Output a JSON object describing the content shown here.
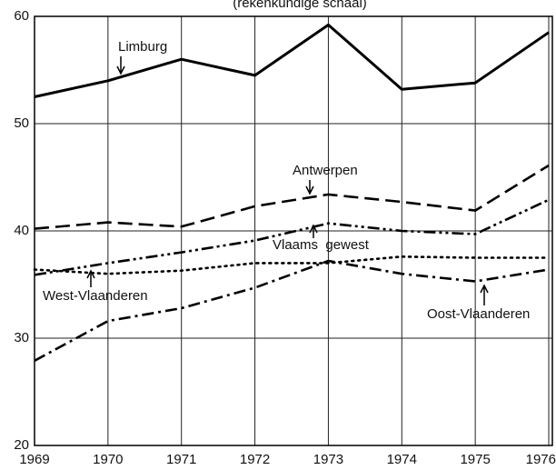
{
  "chart_data": {
    "type": "line",
    "subtitle": "(rekenkundige schaal)",
    "x": [
      1969,
      1970,
      1971,
      1972,
      1973,
      1974,
      1975,
      1976
    ],
    "xlim": [
      1969,
      1976
    ],
    "xticks": [
      1969,
      1970,
      1971,
      1972,
      1973,
      1974,
      1975,
      1976
    ],
    "ylim": [
      20,
      60
    ],
    "yticks": [
      20,
      30,
      40,
      50,
      60
    ],
    "grid": true,
    "series": [
      {
        "name": "Limburg",
        "color": "#000000",
        "dash": "solid",
        "values": [
          52.5,
          54,
          56,
          54.5,
          59.2,
          53.2,
          53.8,
          58.5
        ]
      },
      {
        "name": "Antwerpen",
        "color": "#000000",
        "dash": "dashed",
        "values": [
          40.2,
          40.8,
          40.4,
          42.3,
          43.4,
          42.7,
          41.9,
          46.1
        ]
      },
      {
        "name": "Vlaams  gewest",
        "color": "#000000",
        "dash": "dashdotdot",
        "values": [
          35.9,
          37,
          38,
          39.1,
          40.7,
          40,
          39.7,
          42.9
        ]
      },
      {
        "name": "West-Vlaanderen",
        "color": "#000000",
        "dash": "dotted",
        "values": [
          36.4,
          36,
          36.3,
          37,
          37,
          37.6,
          37.5,
          37.5
        ]
      },
      {
        "name": "Oost-Vlaanderen",
        "color": "#000000",
        "dash": "dashdot",
        "values": [
          27.9,
          31.6,
          32.8,
          34.7,
          37.2,
          36,
          35.3,
          36.4
        ]
      }
    ]
  }
}
